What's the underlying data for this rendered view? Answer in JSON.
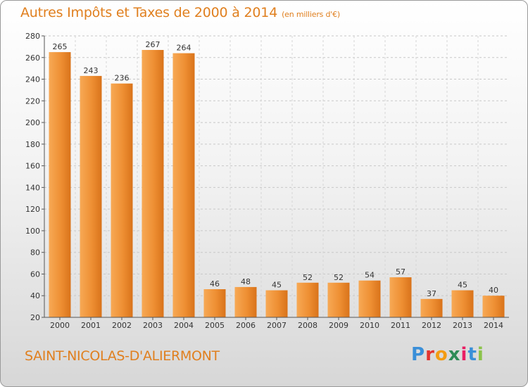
{
  "header": {
    "title": "Autres Impôts et Taxes de 2000 à 2014",
    "unit": "(en milliers d'€)"
  },
  "footer": {
    "commune": "SAINT-NICOLAS-D'ALIERMONT",
    "logo": {
      "letters": [
        "P",
        "r",
        "o",
        "x",
        "i",
        "t",
        "i"
      ],
      "colors": [
        "#3a8fd8",
        "#e3342f",
        "#f39c12",
        "#2e8b57",
        "#e91e63",
        "#3a8fd8",
        "#8bc34a"
      ]
    }
  },
  "chart_data": {
    "type": "bar",
    "title": "Autres Impôts et Taxes de 2000 à 2014",
    "unit": "(en milliers d'€)",
    "categories": [
      "2000",
      "2001",
      "2002",
      "2003",
      "2004",
      "2005",
      "2006",
      "2007",
      "2008",
      "2009",
      "2010",
      "2011",
      "2012",
      "2013",
      "2014"
    ],
    "values": [
      265,
      243,
      236,
      267,
      264,
      46,
      48,
      45,
      52,
      52,
      54,
      57,
      37,
      45,
      40
    ],
    "ylim": [
      20,
      280
    ],
    "yticks": [
      20,
      40,
      60,
      80,
      100,
      120,
      140,
      160,
      180,
      200,
      220,
      240,
      260,
      280
    ],
    "grid": "y-dashed",
    "bar_color": "#f0953b"
  }
}
